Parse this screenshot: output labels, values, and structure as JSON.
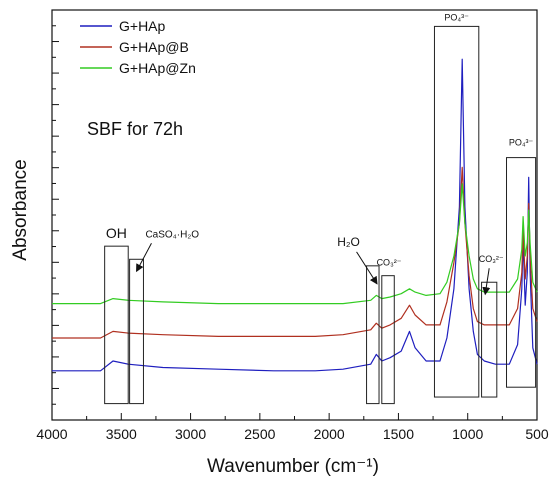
{
  "chart_data": {
    "type": "line",
    "title": "",
    "xlabel": "Wavenumber (cm⁻¹)",
    "ylabel": "Absorbance",
    "xlim": [
      4000,
      500
    ],
    "x_reversed": true,
    "xticks": [
      "4000",
      "3500",
      "3000",
      "2500",
      "2000",
      "1500",
      "1000",
      "500"
    ],
    "y_ticks_labeled": false,
    "grid": false,
    "legend_position": "top-left",
    "condition_label": "SBF for 72h",
    "series": [
      {
        "name": "G+HAp",
        "color": "#1f1fbf",
        "points": [
          [
            4000,
            0.05
          ],
          [
            3650,
            0.05
          ],
          [
            3560,
            0.08
          ],
          [
            3450,
            0.07
          ],
          [
            3200,
            0.06
          ],
          [
            2800,
            0.055
          ],
          [
            2400,
            0.05
          ],
          [
            2100,
            0.05
          ],
          [
            1900,
            0.055
          ],
          [
            1700,
            0.07
          ],
          [
            1660,
            0.1
          ],
          [
            1620,
            0.08
          ],
          [
            1560,
            0.09
          ],
          [
            1480,
            0.11
          ],
          [
            1420,
            0.17
          ],
          [
            1380,
            0.12
          ],
          [
            1300,
            0.08
          ],
          [
            1200,
            0.08
          ],
          [
            1150,
            0.15
          ],
          [
            1100,
            0.3
          ],
          [
            1060,
            0.55
          ],
          [
            1040,
            1.0
          ],
          [
            1020,
            0.55
          ],
          [
            990,
            0.3
          ],
          [
            960,
            0.17
          ],
          [
            930,
            0.1
          ],
          [
            880,
            0.08
          ],
          [
            800,
            0.07
          ],
          [
            700,
            0.07
          ],
          [
            640,
            0.13
          ],
          [
            610,
            0.3
          ],
          [
            600,
            0.45
          ],
          [
            585,
            0.25
          ],
          [
            570,
            0.35
          ],
          [
            560,
            0.64
          ],
          [
            550,
            0.35
          ],
          [
            530,
            0.12
          ],
          [
            500,
            0.07
          ]
        ]
      },
      {
        "name": "G+HAp@B",
        "color": "#b03020",
        "points": [
          [
            4000,
            0.15
          ],
          [
            3650,
            0.15
          ],
          [
            3560,
            0.17
          ],
          [
            3450,
            0.165
          ],
          [
            3200,
            0.16
          ],
          [
            2800,
            0.155
          ],
          [
            2400,
            0.155
          ],
          [
            2100,
            0.155
          ],
          [
            1900,
            0.16
          ],
          [
            1700,
            0.175
          ],
          [
            1660,
            0.195
          ],
          [
            1620,
            0.18
          ],
          [
            1560,
            0.19
          ],
          [
            1480,
            0.21
          ],
          [
            1420,
            0.25
          ],
          [
            1380,
            0.22
          ],
          [
            1300,
            0.19
          ],
          [
            1200,
            0.19
          ],
          [
            1150,
            0.26
          ],
          [
            1100,
            0.38
          ],
          [
            1060,
            0.5
          ],
          [
            1040,
            0.67
          ],
          [
            1020,
            0.5
          ],
          [
            990,
            0.34
          ],
          [
            960,
            0.24
          ],
          [
            930,
            0.2
          ],
          [
            880,
            0.19
          ],
          [
            800,
            0.19
          ],
          [
            700,
            0.19
          ],
          [
            640,
            0.24
          ],
          [
            610,
            0.35
          ],
          [
            600,
            0.48
          ],
          [
            585,
            0.33
          ],
          [
            570,
            0.4
          ],
          [
            560,
            0.56
          ],
          [
            550,
            0.4
          ],
          [
            530,
            0.24
          ],
          [
            500,
            0.2
          ]
        ]
      },
      {
        "name": "G+HAp@Zn",
        "color": "#33cc22",
        "points": [
          [
            4000,
            0.255
          ],
          [
            3650,
            0.255
          ],
          [
            3560,
            0.27
          ],
          [
            3450,
            0.265
          ],
          [
            3200,
            0.26
          ],
          [
            2800,
            0.255
          ],
          [
            2400,
            0.255
          ],
          [
            2100,
            0.255
          ],
          [
            1900,
            0.255
          ],
          [
            1700,
            0.265
          ],
          [
            1660,
            0.28
          ],
          [
            1620,
            0.27
          ],
          [
            1560,
            0.275
          ],
          [
            1480,
            0.285
          ],
          [
            1420,
            0.3
          ],
          [
            1380,
            0.29
          ],
          [
            1300,
            0.28
          ],
          [
            1200,
            0.285
          ],
          [
            1150,
            0.32
          ],
          [
            1100,
            0.4
          ],
          [
            1060,
            0.5
          ],
          [
            1040,
            0.62
          ],
          [
            1020,
            0.5
          ],
          [
            990,
            0.4
          ],
          [
            960,
            0.33
          ],
          [
            930,
            0.3
          ],
          [
            880,
            0.29
          ],
          [
            800,
            0.29
          ],
          [
            700,
            0.29
          ],
          [
            640,
            0.33
          ],
          [
            610,
            0.42
          ],
          [
            600,
            0.52
          ],
          [
            585,
            0.4
          ],
          [
            570,
            0.44
          ],
          [
            560,
            0.54
          ],
          [
            550,
            0.44
          ],
          [
            530,
            0.32
          ],
          [
            500,
            0.29
          ]
        ]
      }
    ],
    "annotations": [
      {
        "label": "OH",
        "x_range": [
          3620,
          3450
        ],
        "y_range": [
          -0.05,
          0.43
        ]
      },
      {
        "label": "CaSO₄·H₂O",
        "x_range": [
          3440,
          3340
        ],
        "y_range": [
          -0.05,
          0.39
        ],
        "arrow": true
      },
      {
        "label": "H₂O",
        "x_range": [
          1730,
          1640
        ],
        "y_range": [
          -0.05,
          0.37
        ],
        "arrow": true
      },
      {
        "label": "CO₃²⁻",
        "x_range": [
          1620,
          1530
        ],
        "y_range": [
          -0.05,
          0.34
        ]
      },
      {
        "label": "PO₄³⁻",
        "x_range": [
          1240,
          920
        ],
        "y_range": [
          -0.03,
          1.1
        ]
      },
      {
        "label": "CO₃²⁻",
        "x_range": [
          900,
          790
        ],
        "y_range": [
          -0.03,
          0.32
        ],
        "arrow": true
      },
      {
        "label": "PO₄³⁻",
        "x_range": [
          720,
          510
        ],
        "y_range": [
          0.0,
          0.7
        ]
      }
    ]
  }
}
